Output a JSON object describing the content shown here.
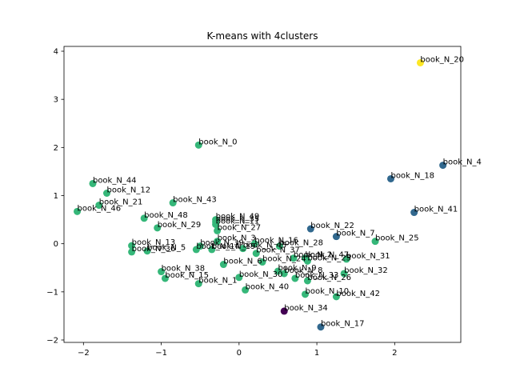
{
  "chart_data": {
    "type": "scatter",
    "title": "K-means with 4clusters",
    "xlabel": "",
    "ylabel": "",
    "xlim": [
      -2.25,
      2.85
    ],
    "ylim": [
      -2.05,
      4.1
    ],
    "xticks": [
      -2,
      -1,
      0,
      1,
      2
    ],
    "yticks": [
      -2,
      -1,
      0,
      1,
      2,
      3,
      4
    ],
    "grid": false,
    "cluster_colors": [
      "#440154",
      "#31688e",
      "#35b779",
      "#fde725"
    ],
    "points": [
      {
        "label": "book_N_0",
        "x": -0.52,
        "y": 2.05,
        "cluster": 2
      },
      {
        "label": "book_N_4",
        "x": 2.62,
        "y": 1.63,
        "cluster": 1
      },
      {
        "label": "book_N_18",
        "x": 1.95,
        "y": 1.35,
        "cluster": 1
      },
      {
        "label": "book_N_41",
        "x": 2.25,
        "y": 0.65,
        "cluster": 1
      },
      {
        "label": "book_N_22",
        "x": 0.92,
        "y": 0.31,
        "cluster": 1
      },
      {
        "label": "book_N_7",
        "x": 1.25,
        "y": 0.15,
        "cluster": 1
      },
      {
        "label": "book_N_17",
        "x": 1.05,
        "y": -1.73,
        "cluster": 1
      },
      {
        "label": "book_N_20",
        "x": 2.33,
        "y": 3.76,
        "cluster": 3
      },
      {
        "label": "book_N_34",
        "x": 0.58,
        "y": -1.4,
        "cluster": 0
      },
      {
        "label": "book_N_44",
        "x": -1.88,
        "y": 1.25,
        "cluster": 2
      },
      {
        "label": "book_N_12",
        "x": -1.7,
        "y": 1.05,
        "cluster": 2
      },
      {
        "label": "book_N_21",
        "x": -1.8,
        "y": 0.8,
        "cluster": 2
      },
      {
        "label": "book_N_46",
        "x": -2.08,
        "y": 0.67,
        "cluster": 2
      },
      {
        "label": "book_N_43",
        "x": -0.85,
        "y": 0.85,
        "cluster": 2
      },
      {
        "label": "book_N_48",
        "x": -1.22,
        "y": 0.53,
        "cluster": 2
      },
      {
        "label": "book_N_49",
        "x": -0.3,
        "y": 0.5,
        "cluster": 2
      },
      {
        "label": "book_N_35",
        "x": -0.3,
        "y": 0.45,
        "cluster": 2
      },
      {
        "label": "book_N_11",
        "x": -0.3,
        "y": 0.4,
        "cluster": 2
      },
      {
        "label": "book_N_29",
        "x": -1.05,
        "y": 0.33,
        "cluster": 2
      },
      {
        "label": "book_N_27",
        "x": -0.28,
        "y": 0.27,
        "cluster": 2
      },
      {
        "label": "book_N_3",
        "x": -0.28,
        "y": 0.05,
        "cluster": 2
      },
      {
        "label": "book_N_16",
        "x": 0.2,
        "y": 0.0,
        "cluster": 2
      },
      {
        "label": "book_N_28",
        "x": 0.52,
        "y": -0.05,
        "cluster": 2
      },
      {
        "label": "book_N_13",
        "x": -1.38,
        "y": -0.04,
        "cluster": 2
      },
      {
        "label": "book_N_39",
        "x": -0.5,
        "y": -0.05,
        "cluster": 2
      },
      {
        "label": "book_N_36",
        "x": -1.38,
        "y": -0.17,
        "cluster": 2
      },
      {
        "label": "book_N_5",
        "x": -1.18,
        "y": -0.15,
        "cluster": 2
      },
      {
        "label": "book_N_14",
        "x": -0.55,
        "y": -0.12,
        "cluster": 2
      },
      {
        "label": "book_N_19",
        "x": -0.35,
        "y": -0.12,
        "cluster": 2
      },
      {
        "label": "book_N_45",
        "x": 0.05,
        "y": -0.1,
        "cluster": 2
      },
      {
        "label": "book_N_37",
        "x": 0.22,
        "y": -0.2,
        "cluster": 2
      },
      {
        "label": "book_N_47",
        "x": 0.85,
        "y": -0.3,
        "cluster": 2
      },
      {
        "label": "book_N_23",
        "x": 0.88,
        "y": -0.36,
        "cluster": 2
      },
      {
        "label": "book_N_2",
        "x": 0.7,
        "y": -0.3,
        "cluster": 2
      },
      {
        "label": "book_N_31",
        "x": 1.38,
        "y": -0.32,
        "cluster": 2
      },
      {
        "label": "book_N_25",
        "x": 1.75,
        "y": 0.05,
        "cluster": 2
      },
      {
        "label": "book_N_38",
        "x": -1.0,
        "y": -0.58,
        "cluster": 2
      },
      {
        "label": "book_N_6",
        "x": -0.2,
        "y": -0.43,
        "cluster": 2
      },
      {
        "label": "book_N_24",
        "x": 0.3,
        "y": -0.38,
        "cluster": 2
      },
      {
        "label": "book_N_8",
        "x": 0.58,
        "y": -0.62,
        "cluster": 2
      },
      {
        "label": "book_N_9",
        "x": 0.5,
        "y": -0.57,
        "cluster": 2
      },
      {
        "label": "book_N_15",
        "x": -0.95,
        "y": -0.72,
        "cluster": 2
      },
      {
        "label": "book_N_30",
        "x": 0.0,
        "y": -0.7,
        "cluster": 2
      },
      {
        "label": "book_N_33",
        "x": 0.72,
        "y": -0.72,
        "cluster": 2
      },
      {
        "label": "book_N_1",
        "x": -0.52,
        "y": -0.83,
        "cluster": 2
      },
      {
        "label": "book_N_32",
        "x": 1.35,
        "y": -0.62,
        "cluster": 2
      },
      {
        "label": "book_N_26",
        "x": 0.88,
        "y": -0.77,
        "cluster": 2
      },
      {
        "label": "book_N_40",
        "x": 0.08,
        "y": -0.96,
        "cluster": 2
      },
      {
        "label": "book_N_10",
        "x": 0.85,
        "y": -1.05,
        "cluster": 2
      },
      {
        "label": "book_N_42",
        "x": 1.25,
        "y": -1.1,
        "cluster": 2
      }
    ]
  }
}
